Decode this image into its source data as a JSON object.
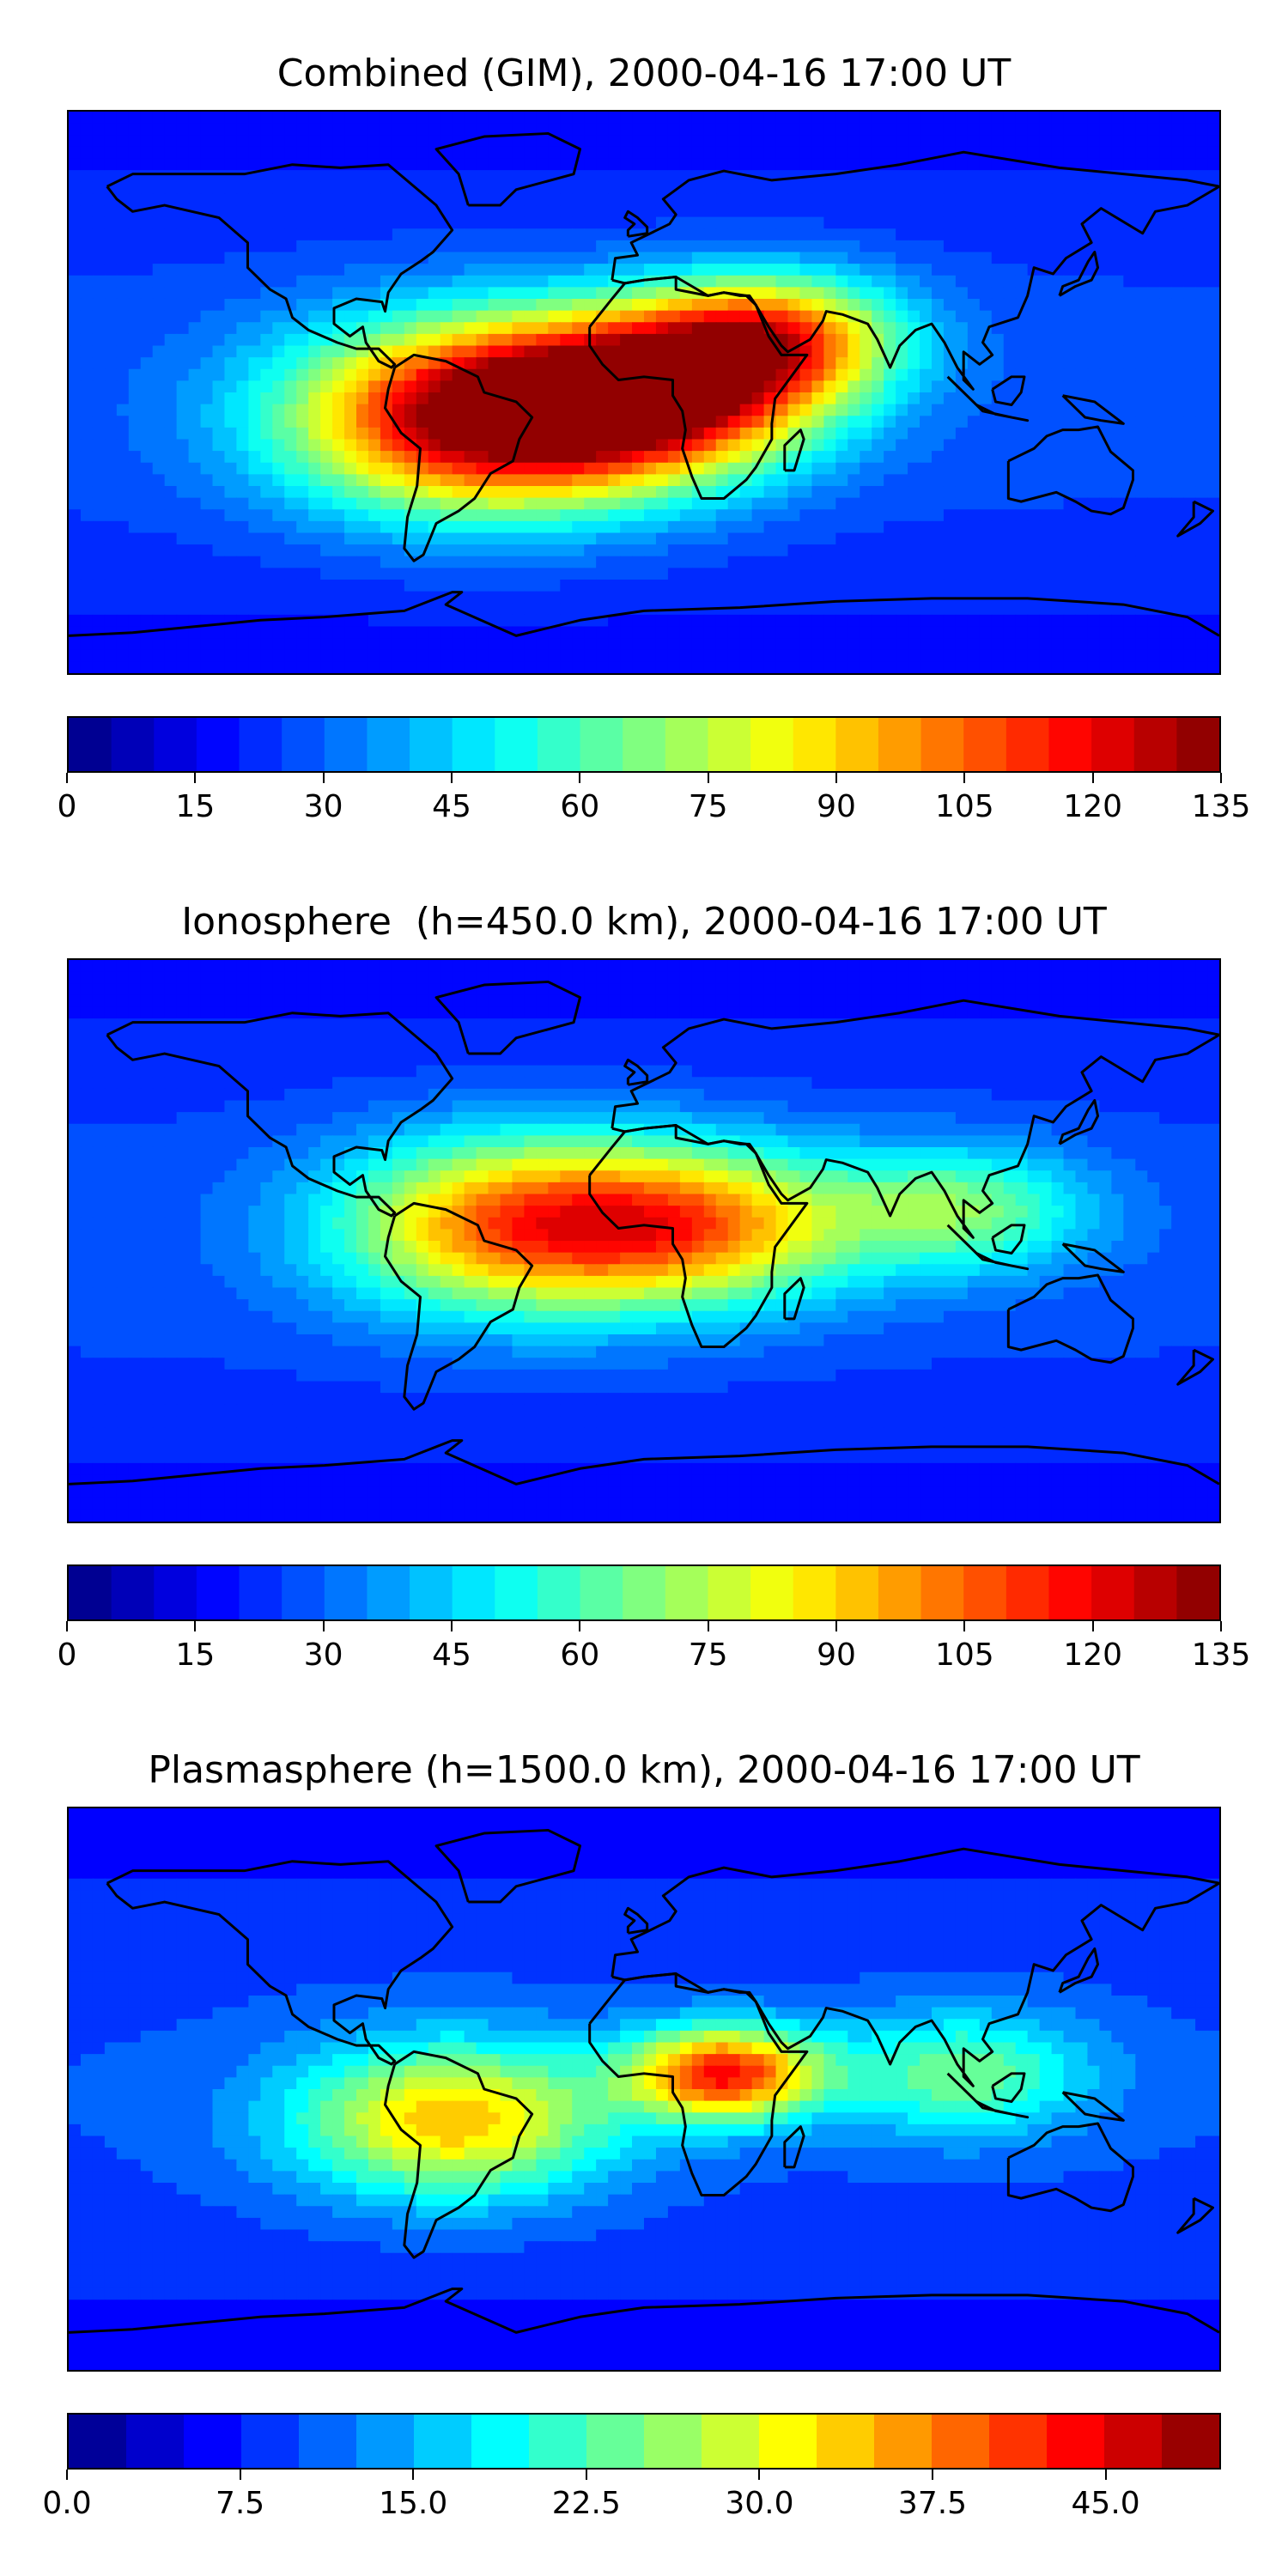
{
  "panels": [
    {
      "title": "Combined (GIM), 2000-04-16 17:00 UT",
      "colorbar": {
        "min": 0,
        "max": 135,
        "levels": 27,
        "ticks": [
          "0",
          "15",
          "30",
          "45",
          "60",
          "75",
          "90",
          "105",
          "120",
          "135"
        ]
      },
      "hotspots": [
        {
          "lon": -50,
          "lat": -8,
          "value": 128,
          "spread": 30
        },
        {
          "lon": 5,
          "lat": 0,
          "value": 110,
          "spread": 25
        },
        {
          "lon": 40,
          "lat": 18,
          "value": 90,
          "spread": 20
        }
      ]
    },
    {
      "title": "Ionosphere  (h=450.0 km), 2000-04-16 17:00 UT",
      "colorbar": {
        "min": 0,
        "max": 135,
        "levels": 27,
        "ticks": [
          "0",
          "15",
          "30",
          "45",
          "60",
          "75",
          "90",
          "105",
          "120",
          "135"
        ]
      },
      "hotspots": [
        {
          "lon": -40,
          "lat": 5,
          "value": 95,
          "spread": 28
        },
        {
          "lon": 20,
          "lat": 5,
          "value": 80,
          "spread": 25
        },
        {
          "lon": 100,
          "lat": 10,
          "value": 60,
          "spread": 20
        }
      ]
    },
    {
      "title": "Plasmasphere (h=1500.0 km), 2000-04-16 17:00 UT",
      "colorbar": {
        "min": 0,
        "max": 50,
        "levels": 20,
        "ticks": [
          "0.0",
          "7.5",
          "15.0",
          "22.5",
          "30.0",
          "37.5",
          "45.0"
        ]
      },
      "hotspots": [
        {
          "lon": 25,
          "lat": 5,
          "value": 40,
          "spread": 15
        },
        {
          "lon": -60,
          "lat": -10,
          "value": 32,
          "spread": 25
        },
        {
          "lon": 100,
          "lat": 5,
          "value": 22,
          "spread": 20
        }
      ]
    }
  ],
  "colormap": "jet"
}
